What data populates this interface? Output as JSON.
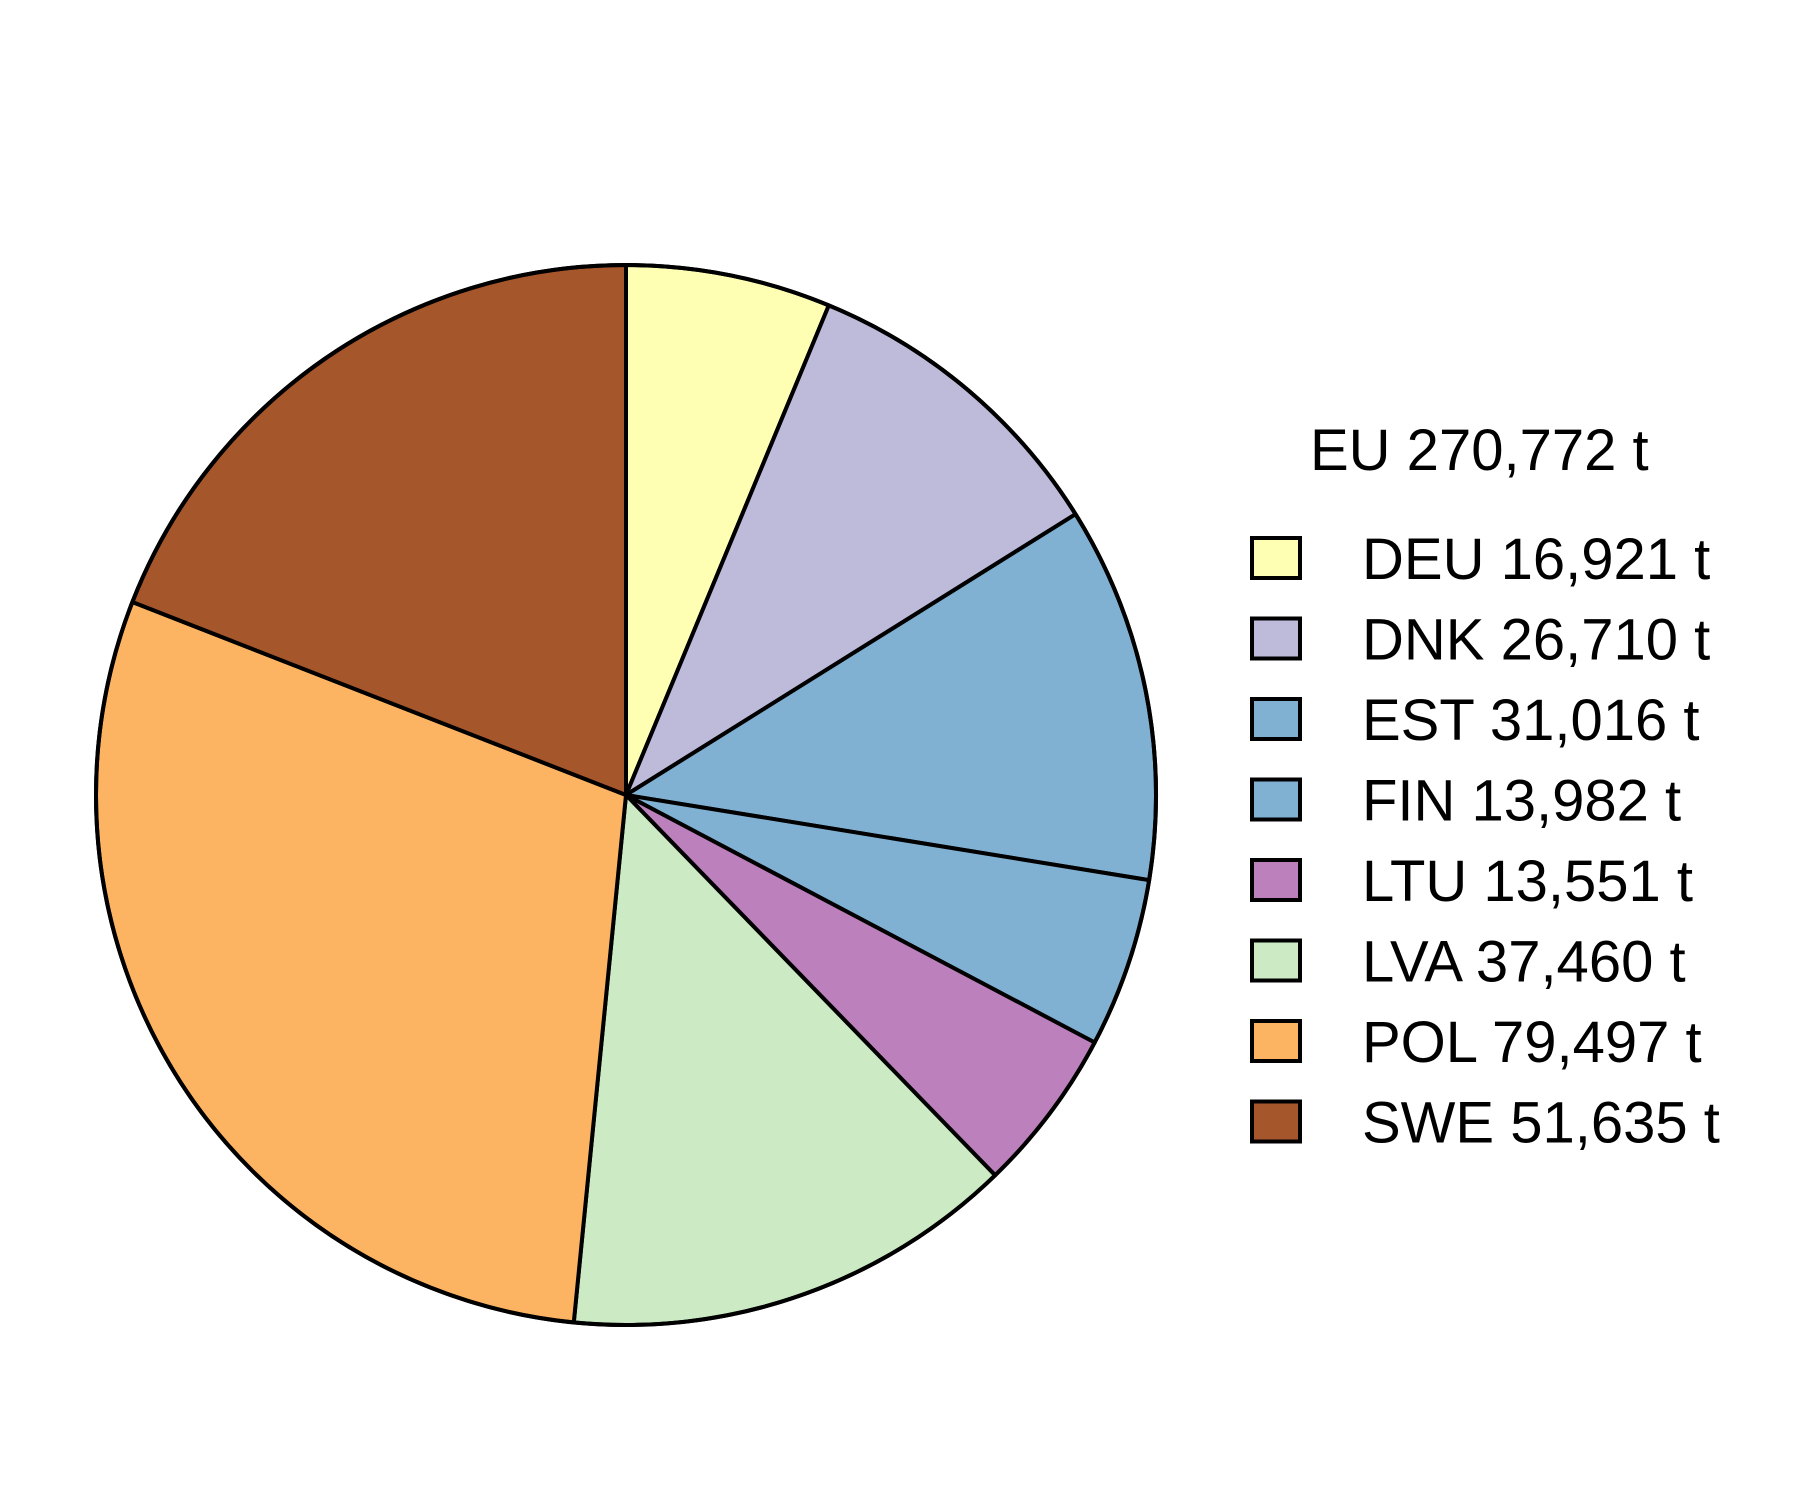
{
  "chart_data": {
    "type": "pie",
    "legend_title": "EU 270,772 t",
    "legend_position": "right",
    "slices": [
      {
        "name": "DEU",
        "label": "DEU 16,921 t",
        "value": 16921,
        "color": "#FFFFB3"
      },
      {
        "name": "DNK",
        "label": "DNK 26,710 t",
        "value": 26710,
        "color": "#BEBADA"
      },
      {
        "name": "EST",
        "label": "EST 31,016 t",
        "value": 31016,
        "color": "#80B1D3"
      },
      {
        "name": "FIN",
        "label": "FIN 13,982 t",
        "value": 13982,
        "color": "#80B1D3"
      },
      {
        "name": "LTU",
        "label": "LTU 13,551 t",
        "value": 13551,
        "color": "#BC80BD"
      },
      {
        "name": "LVA",
        "label": "LVA 37,460 t",
        "value": 37460,
        "color": "#CCEBC5"
      },
      {
        "name": "POL",
        "label": "POL 79,497 t",
        "value": 79497,
        "color": "#FDB462"
      },
      {
        "name": "SWE",
        "label": "SWE 51,635 t",
        "value": 51635,
        "color": "#A6562B"
      }
    ],
    "start_angle": "12 o'clock",
    "direction": "clockwise"
  }
}
